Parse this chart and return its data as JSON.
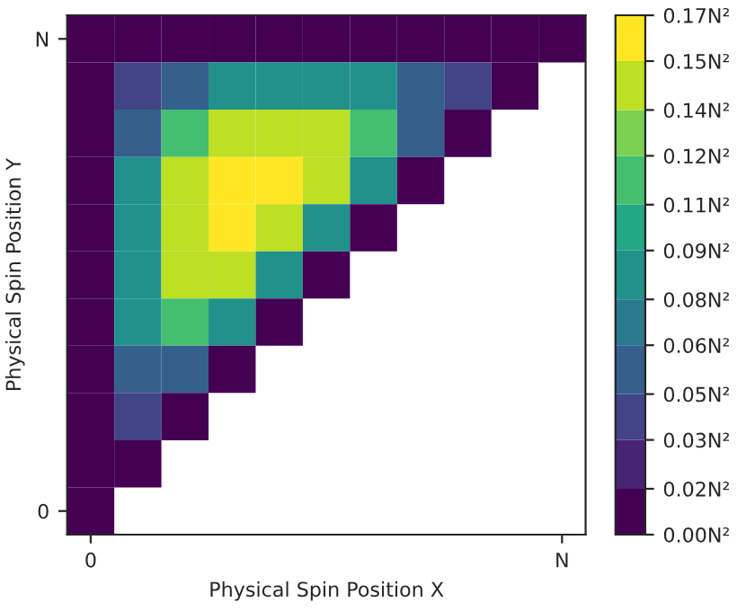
{
  "chart_data": {
    "type": "heatmap",
    "xlabel": "Physical Spin Position X",
    "ylabel": "Physical Spin Position Y",
    "categories": [
      "0",
      null,
      null,
      null,
      null,
      null,
      null,
      null,
      null,
      null,
      "N"
    ],
    "y_categories": [
      "N",
      null,
      null,
      null,
      null,
      null,
      null,
      null,
      null,
      null,
      "0"
    ],
    "cells": [
      [
        0.0,
        0.0,
        0.0,
        0.0,
        0.0,
        0.0,
        0.0,
        0.0,
        0.0,
        0.0,
        0.0
      ],
      [
        0.0,
        0.04,
        0.06,
        0.08,
        0.09,
        0.09,
        0.08,
        0.06,
        0.04,
        0.0,
        null
      ],
      [
        0.0,
        0.06,
        0.11,
        0.14,
        0.15,
        0.14,
        0.11,
        0.06,
        0.0,
        null,
        null
      ],
      [
        0.0,
        0.08,
        0.14,
        0.17,
        0.17,
        0.14,
        0.08,
        0.0,
        null,
        null,
        null
      ],
      [
        0.0,
        0.09,
        0.15,
        0.17,
        0.15,
        0.09,
        0.0,
        null,
        null,
        null,
        null
      ],
      [
        0.0,
        0.09,
        0.14,
        0.14,
        0.09,
        0.0,
        null,
        null,
        null,
        null,
        null
      ],
      [
        0.0,
        0.08,
        0.11,
        0.08,
        0.0,
        null,
        null,
        null,
        null,
        null,
        null
      ],
      [
        0.0,
        0.06,
        0.06,
        0.0,
        null,
        null,
        null,
        null,
        null,
        null,
        null
      ],
      [
        0.0,
        0.04,
        0.0,
        null,
        null,
        null,
        null,
        null,
        null,
        null,
        null
      ],
      [
        0.0,
        0.0,
        null,
        null,
        null,
        null,
        null,
        null,
        null,
        null,
        null
      ],
      [
        0.0,
        null,
        null,
        null,
        null,
        null,
        null,
        null,
        null,
        null,
        null
      ]
    ],
    "clim": [
      0,
      0.17
    ],
    "cticks": [
      {
        "value": 0,
        "label": "0.00N²"
      },
      {
        "value": 0.015,
        "label": "0.02N²"
      },
      {
        "value": 0.031,
        "label": "0.03N²"
      },
      {
        "value": 0.046,
        "label": "0.05N²"
      },
      {
        "value": 0.062,
        "label": "0.06N²"
      },
      {
        "value": 0.077,
        "label": "0.08N²"
      },
      {
        "value": 0.093,
        "label": "0.09N²"
      },
      {
        "value": 0.108,
        "label": "0.11N²"
      },
      {
        "value": 0.124,
        "label": "0.12N²"
      },
      {
        "value": 0.139,
        "label": "0.14N²"
      },
      {
        "value": 0.155,
        "label": "0.15N²"
      },
      {
        "value": 0.17,
        "label": "0.17N²"
      }
    ]
  }
}
